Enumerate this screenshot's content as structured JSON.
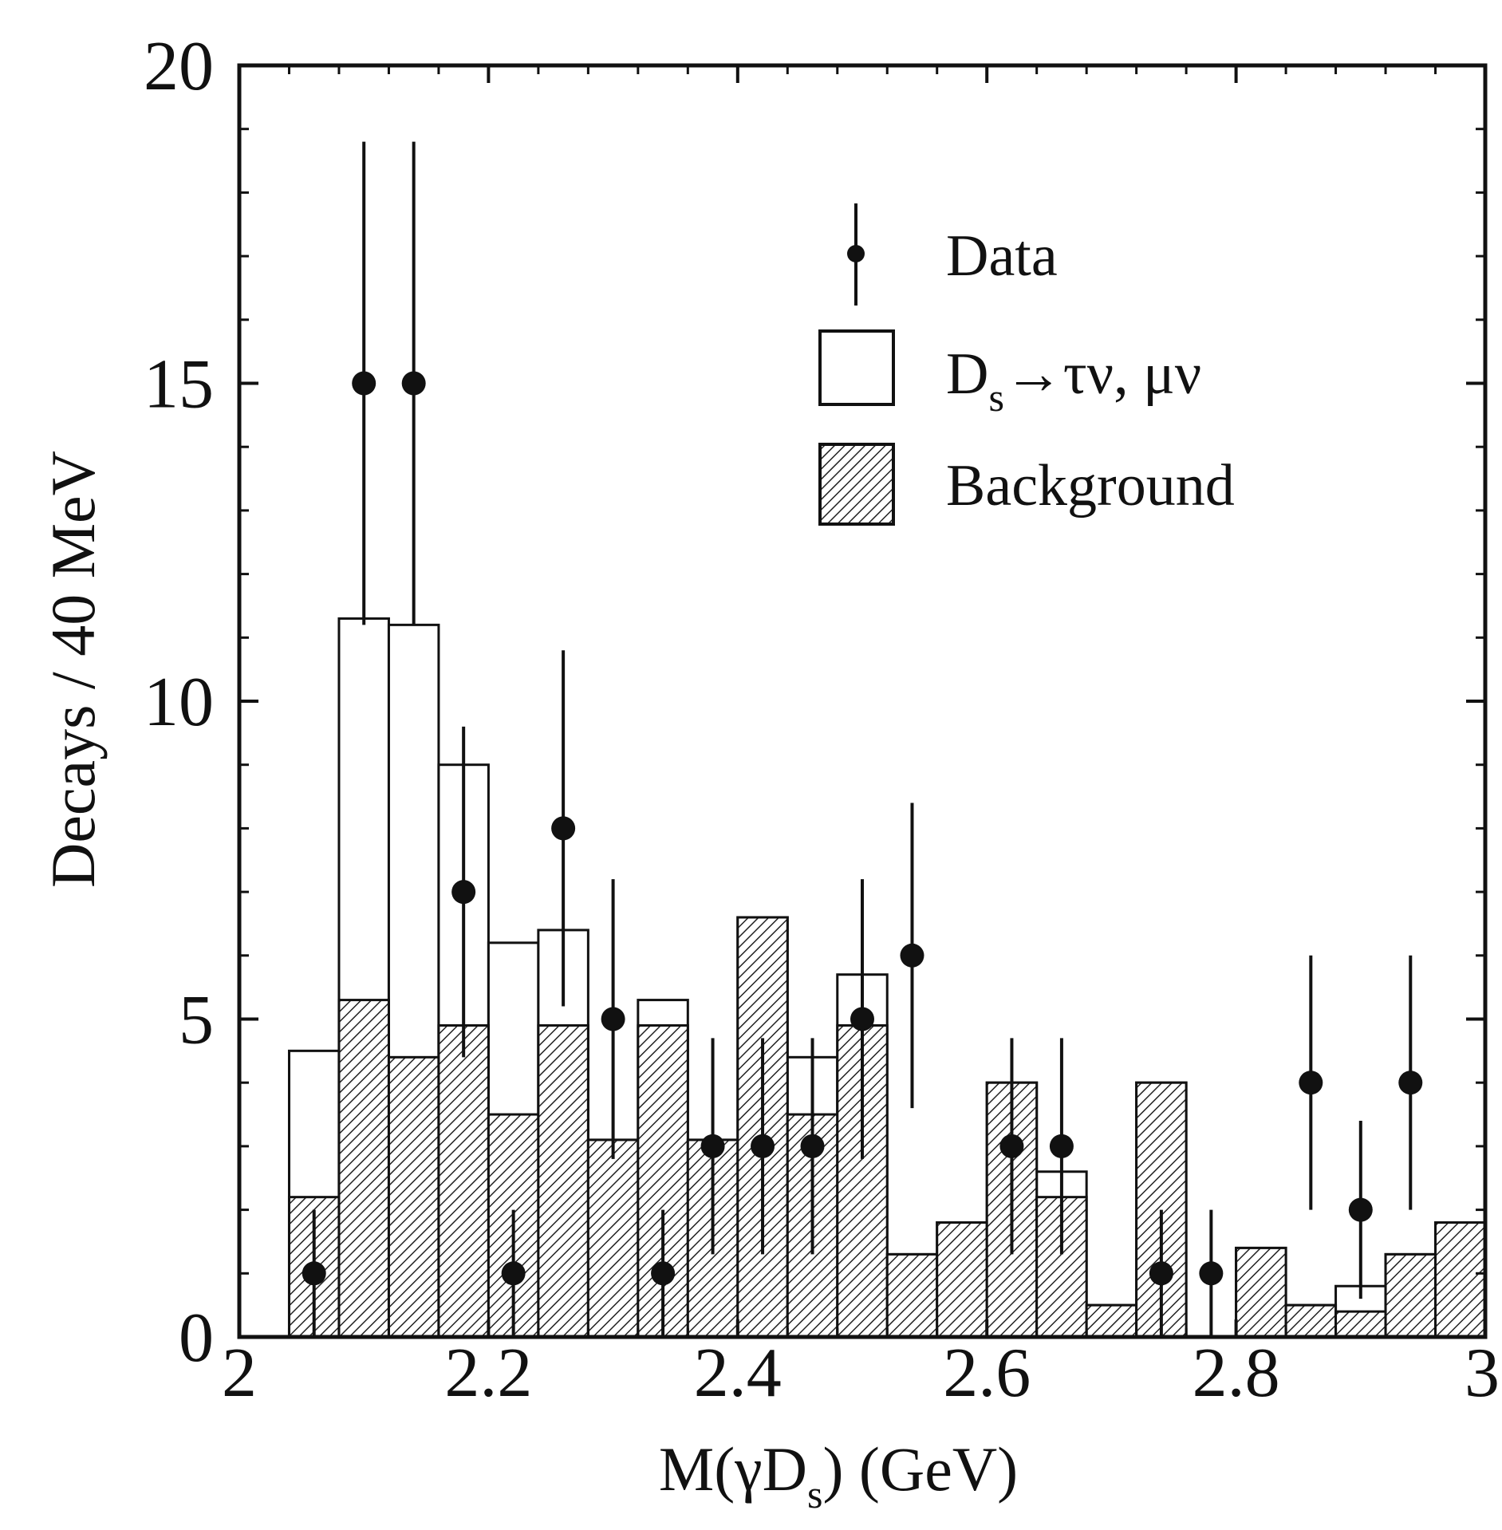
{
  "chart_data": {
    "type": "bar",
    "subtype": "stacked-histogram",
    "title": "",
    "xlabel": {
      "main": "M(γD",
      "sub": "s",
      "tail": ") (GeV)"
    },
    "ylabel": "Decays / 40 MeV",
    "xlim": [
      2,
      3
    ],
    "ylim": [
      0,
      20
    ],
    "xticks": [
      2,
      2.2,
      2.4,
      2.6,
      2.8,
      3
    ],
    "xtick_labels": [
      "2",
      "2.2",
      "2.4",
      "2.6",
      "2.8",
      "3"
    ],
    "yticks": [
      0,
      5,
      10,
      15,
      20
    ],
    "ytick_labels": [
      "0",
      "5",
      "10",
      "15",
      "20"
    ],
    "bin_width": 0.04,
    "bin_starts": [
      2.04,
      2.08,
      2.12,
      2.16,
      2.2,
      2.24,
      2.28,
      2.32,
      2.36,
      2.4,
      2.44,
      2.48,
      2.52,
      2.56,
      2.6,
      2.64,
      2.68,
      2.72,
      2.76,
      2.8,
      2.84,
      2.88,
      2.92,
      2.96
    ],
    "series": [
      {
        "name": "Background",
        "style": "hatched",
        "values": [
          2.2,
          5.3,
          4.4,
          4.9,
          3.5,
          4.9,
          3.1,
          4.9,
          3.1,
          6.6,
          3.5,
          4.9,
          1.3,
          1.8,
          4.0,
          2.2,
          0.5,
          4.0,
          0.0,
          1.4,
          0.5,
          0.4,
          1.3,
          1.8
        ]
      },
      {
        "name": "D_s→τν, μν",
        "style": "open",
        "total_values": [
          4.5,
          11.3,
          11.2,
          9.0,
          6.2,
          6.4,
          3.1,
          5.3,
          3.1,
          6.6,
          4.4,
          5.7,
          1.3,
          1.8,
          4.0,
          2.6,
          0.5,
          4.0,
          0.0,
          1.4,
          0.5,
          0.8,
          1.3,
          1.8
        ]
      }
    ],
    "data_points": {
      "name": "Data",
      "x": [
        2.06,
        2.1,
        2.14,
        2.18,
        2.22,
        2.26,
        2.3,
        2.34,
        2.38,
        2.42,
        2.46,
        2.5,
        2.54,
        2.62,
        2.66,
        2.74,
        2.78,
        2.86,
        2.9,
        2.94
      ],
      "y": [
        1,
        15,
        15,
        7,
        1,
        8,
        5,
        1,
        3,
        3,
        3,
        5,
        6,
        3,
        3,
        1,
        1,
        4,
        2,
        4
      ],
      "err_low": [
        1,
        3.8,
        3.8,
        2.6,
        1,
        2.8,
        2.2,
        1,
        1.7,
        1.7,
        1.7,
        2.2,
        2.4,
        1.7,
        1.7,
        1,
        1,
        2.0,
        1.4,
        2.0
      ],
      "err_high": [
        1,
        3.8,
        3.8,
        2.6,
        1,
        2.8,
        2.2,
        1,
        1.7,
        1.7,
        1.7,
        2.2,
        2.4,
        1.7,
        1.7,
        1,
        1,
        2.0,
        1.4,
        2.0
      ]
    },
    "legend": {
      "position": "top-right",
      "items": [
        {
          "label": "Data",
          "marker": "point-with-errorbar"
        },
        {
          "label_main": "D",
          "label_sub": "s",
          "label_tail": "→τν, μν",
          "marker": "open-box"
        },
        {
          "label": "Background",
          "marker": "hatched-box"
        }
      ]
    },
    "grid": false
  }
}
